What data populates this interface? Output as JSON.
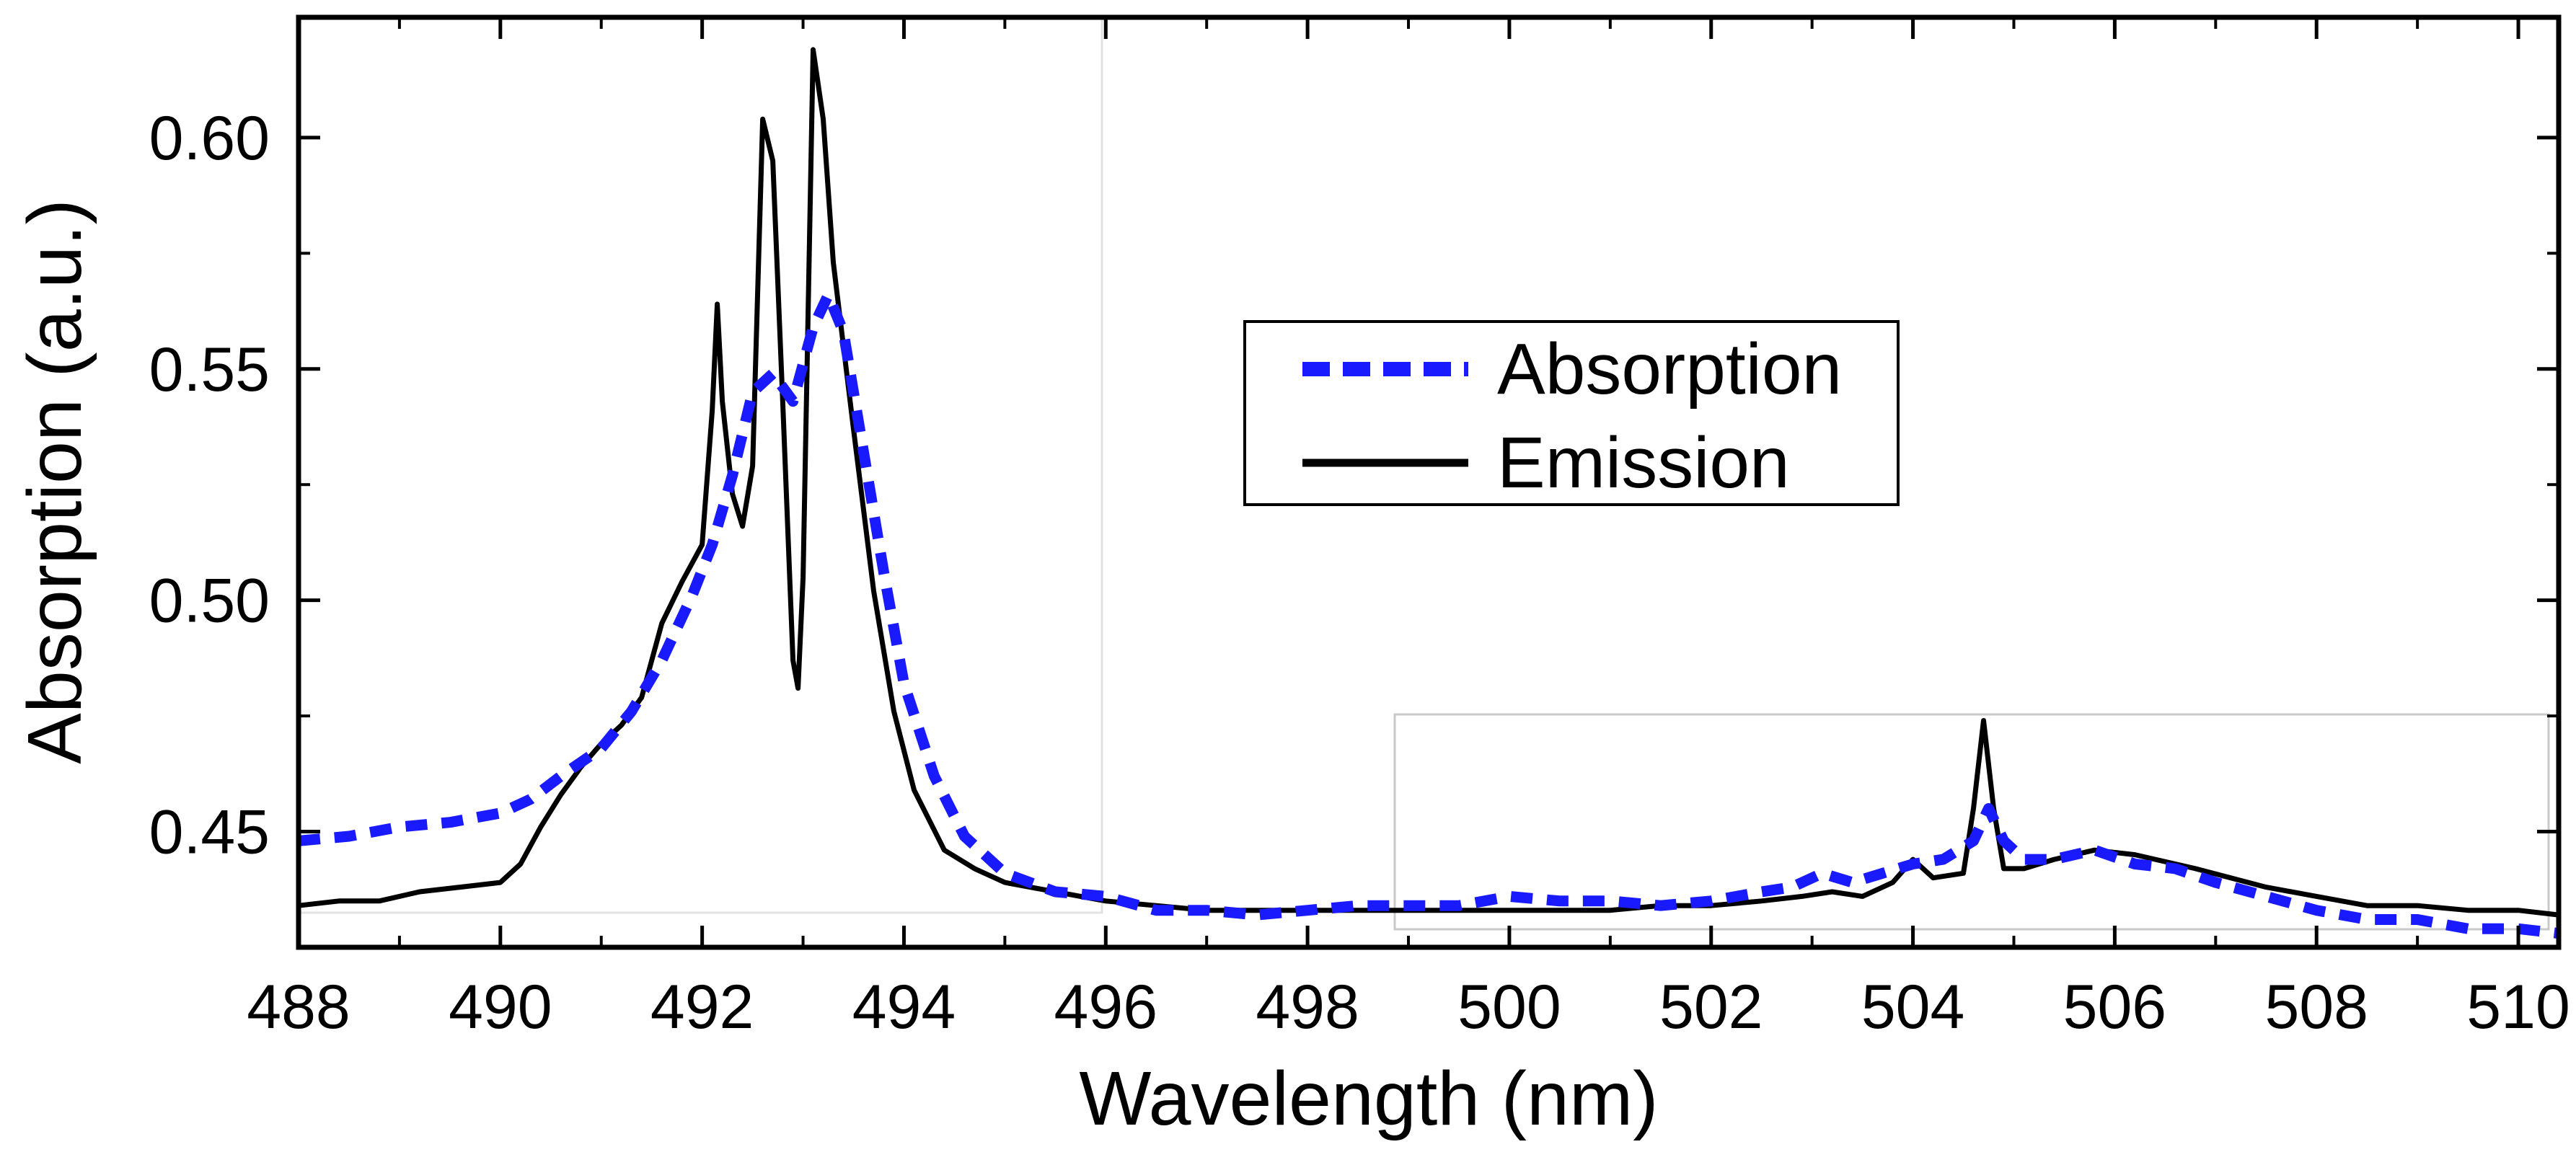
{
  "chart_data": {
    "type": "line",
    "title": "",
    "xlabel": "Wavelength (nm)",
    "ylabel": "Absorption (a.u.)",
    "xlim": [
      488,
      510.4
    ],
    "ylim": [
      0.425,
      0.626
    ],
    "xticks": [
      488,
      490,
      492,
      494,
      496,
      498,
      500,
      502,
      504,
      506,
      508,
      510
    ],
    "xtick_labels": [
      "488",
      "490",
      "492",
      "494",
      "496",
      "498",
      "500",
      "502",
      "504",
      "506",
      "508",
      "510"
    ],
    "yticks": [
      0.45,
      0.5,
      0.55,
      0.6
    ],
    "ytick_labels": [
      "0.45",
      "0.50",
      "0.55",
      "0.60"
    ],
    "grid": false,
    "legend_position": "center",
    "series": [
      {
        "name": "Absorption",
        "color": "#1a1aff",
        "style": "dashed",
        "x": [
          488.0,
          488.5,
          489.0,
          489.5,
          490.0,
          490.3,
          490.6,
          491.0,
          491.3,
          491.6,
          491.9,
          492.1,
          492.3,
          492.5,
          492.7,
          492.9,
          493.1,
          493.25,
          493.4,
          493.6,
          493.8,
          494.0,
          494.3,
          494.6,
          495.0,
          495.5,
          496.0,
          496.5,
          497.0,
          497.5,
          498.0,
          498.5,
          499.0,
          499.5,
          500.0,
          500.5,
          501.0,
          501.5,
          502.0,
          502.5,
          502.8,
          503.1,
          503.4,
          503.7,
          504.0,
          504.3,
          504.6,
          504.75,
          504.9,
          505.1,
          505.4,
          505.8,
          506.2,
          506.6,
          507.0,
          507.5,
          508.0,
          508.5,
          509.0,
          509.5,
          510.0,
          510.4
        ],
        "y": [
          0.448,
          0.449,
          0.451,
          0.452,
          0.454,
          0.457,
          0.462,
          0.468,
          0.476,
          0.487,
          0.501,
          0.512,
          0.527,
          0.545,
          0.549,
          0.543,
          0.559,
          0.566,
          0.558,
          0.532,
          0.506,
          0.482,
          0.462,
          0.449,
          0.441,
          0.437,
          0.436,
          0.433,
          0.433,
          0.432,
          0.433,
          0.434,
          0.434,
          0.434,
          0.436,
          0.435,
          0.435,
          0.434,
          0.435,
          0.437,
          0.438,
          0.441,
          0.439,
          0.441,
          0.443,
          0.444,
          0.448,
          0.455,
          0.448,
          0.444,
          0.444,
          0.446,
          0.443,
          0.442,
          0.439,
          0.436,
          0.433,
          0.431,
          0.431,
          0.429,
          0.429,
          0.428
        ]
      },
      {
        "name": "Emission",
        "color": "#000000",
        "style": "solid",
        "x": [
          488.0,
          488.4,
          488.8,
          489.2,
          489.6,
          490.0,
          490.2,
          490.4,
          490.6,
          490.8,
          491.0,
          491.2,
          491.4,
          491.6,
          491.8,
          492.0,
          492.1,
          492.15,
          492.2,
          492.3,
          492.4,
          492.5,
          492.6,
          492.7,
          492.8,
          492.9,
          492.95,
          493.0,
          493.1,
          493.2,
          493.3,
          493.5,
          493.7,
          493.9,
          494.1,
          494.4,
          494.7,
          495.0,
          495.5,
          496.0,
          496.5,
          497.0,
          497.5,
          498.0,
          498.5,
          499.0,
          499.5,
          500.0,
          500.5,
          501.0,
          501.5,
          502.0,
          502.5,
          502.9,
          503.2,
          503.5,
          503.8,
          504.0,
          504.2,
          504.5,
          504.6,
          504.7,
          504.8,
          504.9,
          505.1,
          505.4,
          505.8,
          506.2,
          506.8,
          507.5,
          508.0,
          508.5,
          509.0,
          509.5,
          510.0,
          510.4
        ],
        "y": [
          0.434,
          0.435,
          0.435,
          0.437,
          0.438,
          0.439,
          0.443,
          0.451,
          0.458,
          0.464,
          0.469,
          0.473,
          0.479,
          0.495,
          0.504,
          0.512,
          0.541,
          0.564,
          0.543,
          0.523,
          0.516,
          0.529,
          0.604,
          0.595,
          0.542,
          0.487,
          0.481,
          0.505,
          0.619,
          0.604,
          0.573,
          0.537,
          0.502,
          0.476,
          0.459,
          0.446,
          0.442,
          0.439,
          0.437,
          0.435,
          0.434,
          0.433,
          0.433,
          0.433,
          0.433,
          0.433,
          0.433,
          0.433,
          0.433,
          0.433,
          0.434,
          0.434,
          0.435,
          0.436,
          0.437,
          0.436,
          0.439,
          0.444,
          0.44,
          0.441,
          0.455,
          0.474,
          0.455,
          0.442,
          0.442,
          0.444,
          0.446,
          0.445,
          0.442,
          0.438,
          0.436,
          0.434,
          0.434,
          0.433,
          0.433,
          0.432
        ]
      }
    ]
  }
}
